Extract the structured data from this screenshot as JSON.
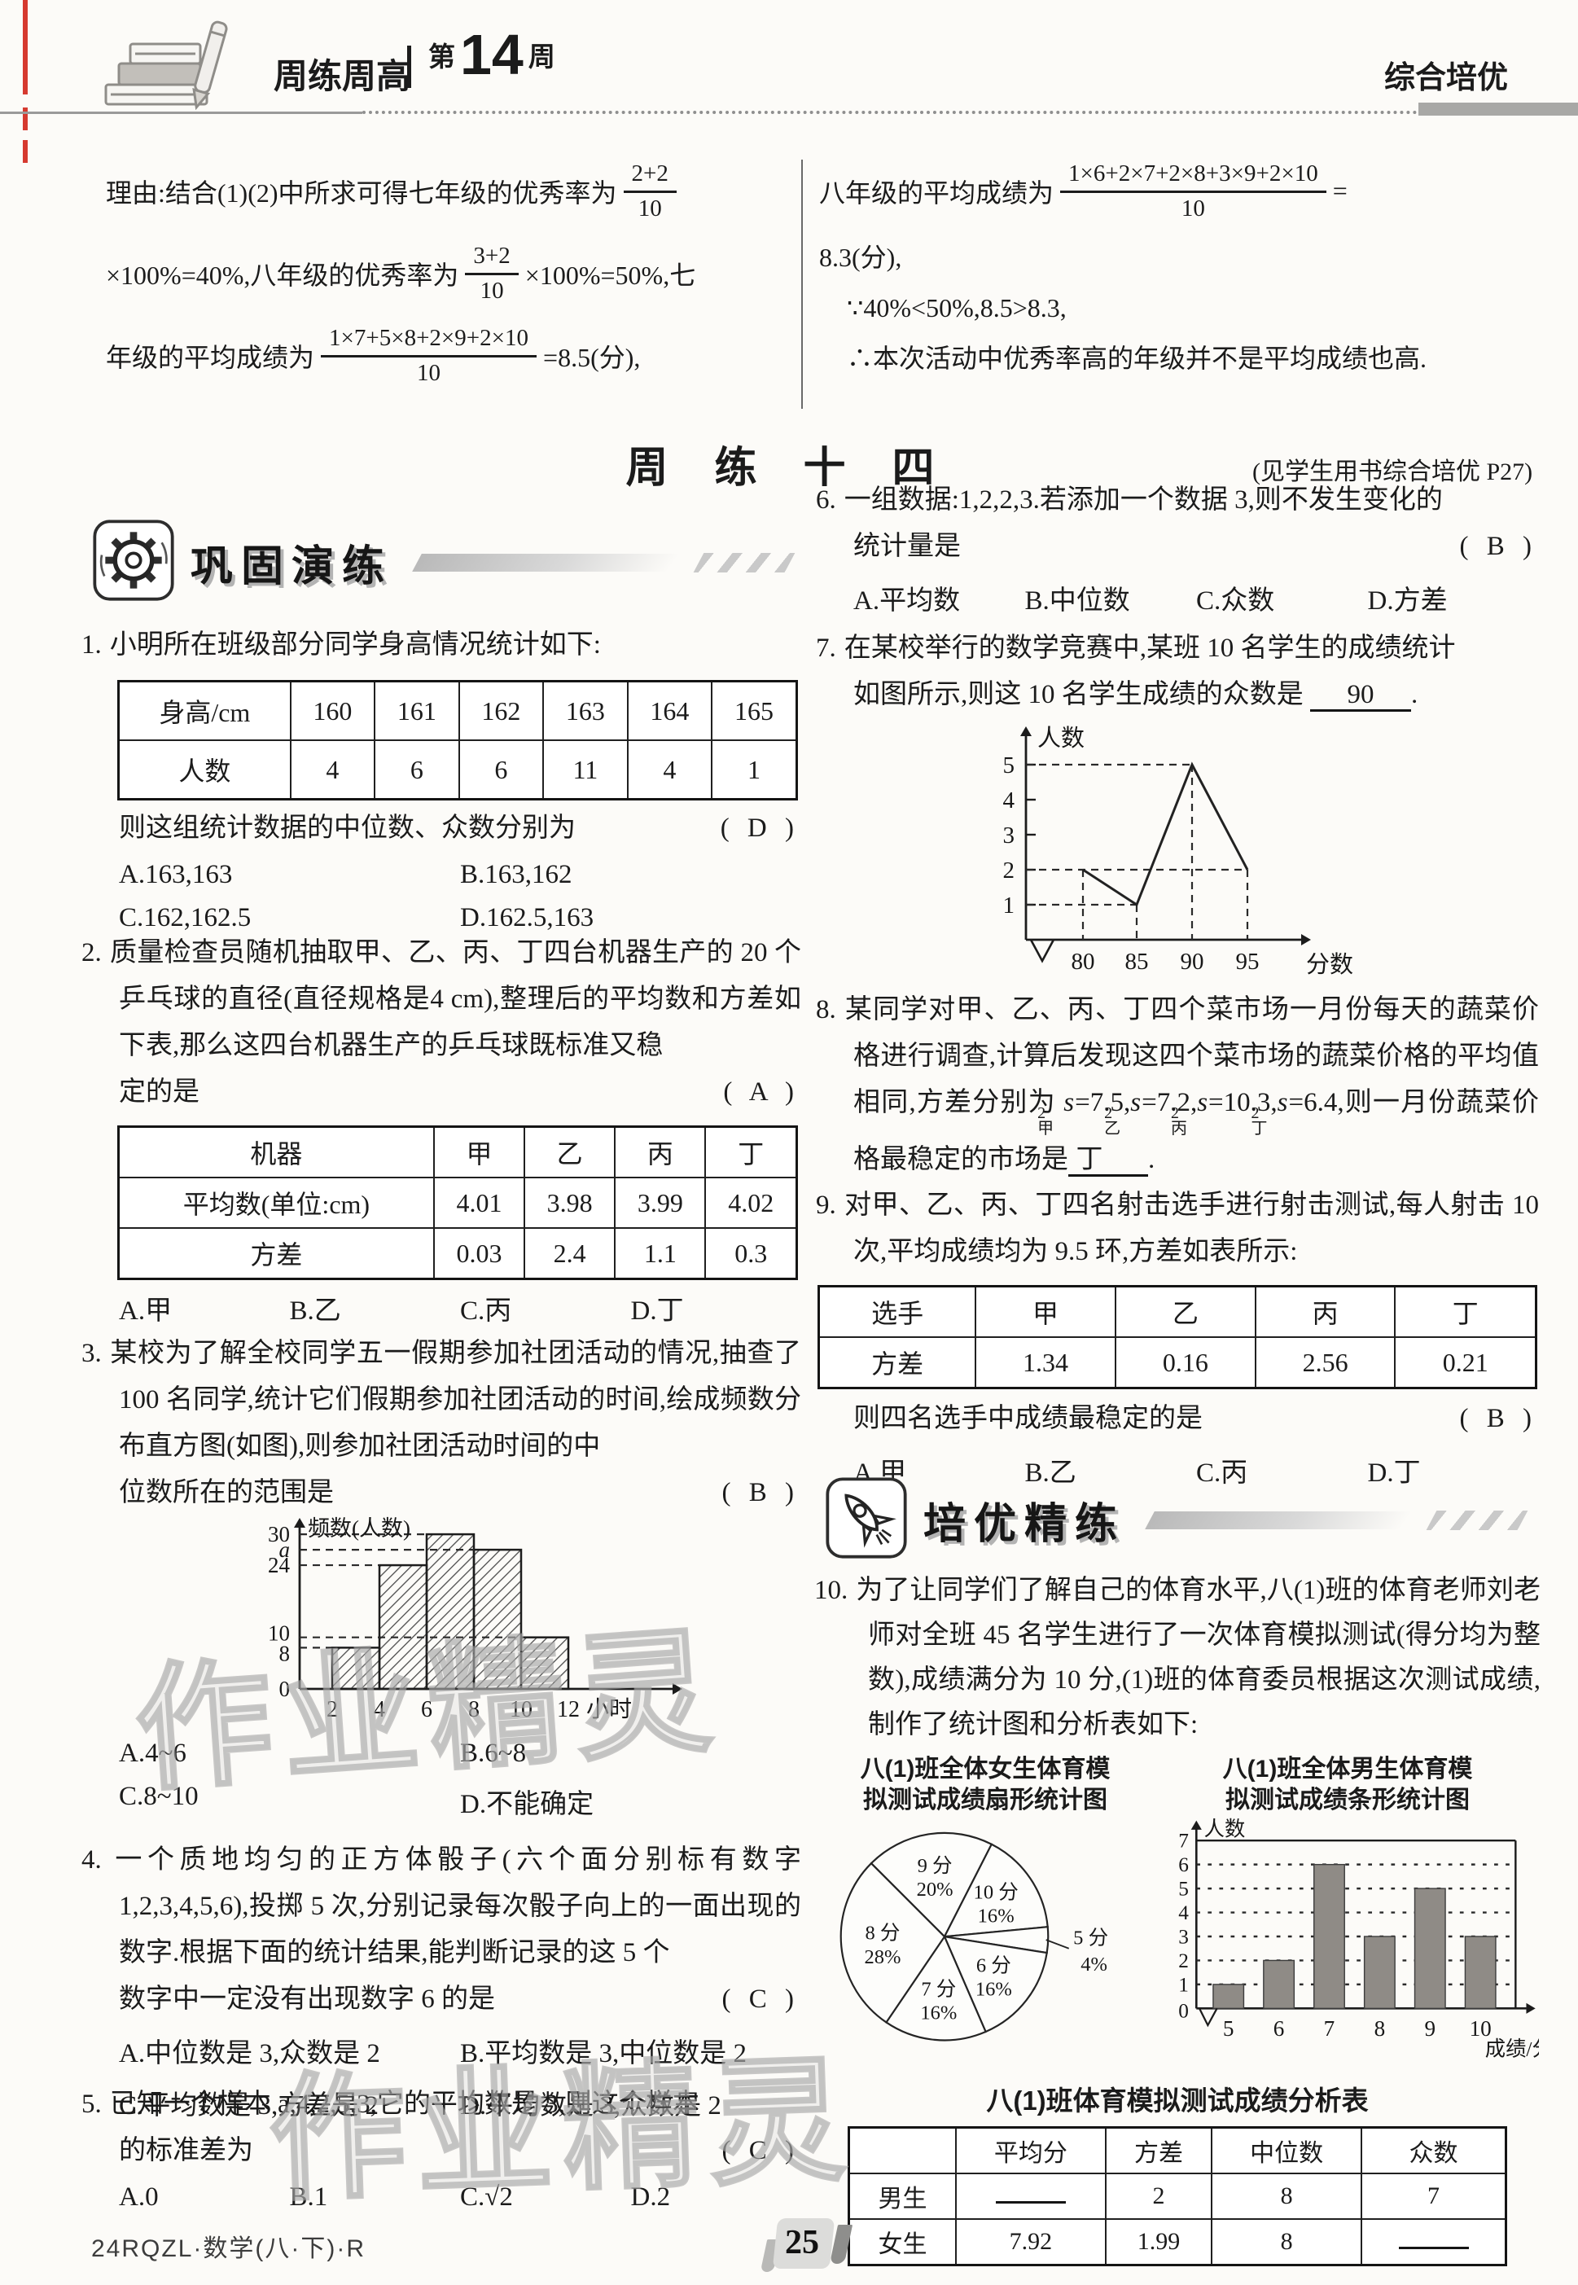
{
  "header": {
    "brand": "周练周高",
    "week_pre": "第",
    "week_num": "14",
    "week_post": "周",
    "edition": "综合培优"
  },
  "solution": {
    "left": {
      "l1a": "理由:结合(1)(2)中所求可得七年级的优秀率为",
      "f1": {
        "n": "2+2",
        "d": "10"
      },
      "l2a": "×100%=40%,八年级的优秀率为",
      "f2": {
        "n": "3+2",
        "d": "10"
      },
      "l2b": "×100%=50%,七",
      "l3a": "年级的平均成绩为",
      "f3": {
        "n": "1×7+5×8+2×9+2×10",
        "d": "10"
      },
      "l3b": "=8.5(分),"
    },
    "right": {
      "l1a": "八年级的平均成绩为",
      "f1": {
        "n": "1×6+2×7+2×8+3×9+2×10",
        "d": "10"
      },
      "l1b": "=",
      "l2": "8.3(分),",
      "l3": "∵40%<50%,8.5>8.3,",
      "l4": "∴本次活动中优秀率高的年级并不是平均成绩也高."
    }
  },
  "title": {
    "text": "周 练 十 四",
    "note": "(见学生用书综合培优 P27)"
  },
  "sections": {
    "s1": "巩固演练",
    "s2": "培优精练"
  },
  "p1": {
    "num": "1.",
    "intro": "小明所在班级部分同学身高情况统计如下:",
    "table": [
      [
        "身高/cm",
        "160",
        "161",
        "162",
        "163",
        "164",
        "165"
      ],
      [
        "人数",
        "4",
        "6",
        "6",
        "11",
        "4",
        "1"
      ]
    ],
    "q": "则这组统计数据的中位数、众数分别为",
    "ans": "( D )",
    "options": [
      "A.163,163",
      "B.163,162",
      "C.162,162.5",
      "D.162.5,163"
    ]
  },
  "p2": {
    "num": "2.",
    "body": "质量检查员随机抽取甲、乙、丙、丁四台机器生产的 20 个乒乓球的直径(直径规格是4 cm),整理后的平均数和方差如下表,那么这四台机器生产的乒乓球既标准又稳",
    "q": "定的是",
    "ans": "( A )",
    "table": [
      [
        "机器",
        "甲",
        "乙",
        "丙",
        "丁"
      ],
      [
        "平均数(单位:cm)",
        "4.01",
        "3.98",
        "3.99",
        "4.02"
      ],
      [
        "方差",
        "0.03",
        "2.4",
        "1.1",
        "0.3"
      ]
    ],
    "options": [
      "A.甲",
      "B.乙",
      "C.丙",
      "D.丁"
    ]
  },
  "p3": {
    "num": "3.",
    "body": "某校为了解全校同学五一假期参加社团活动的情况,抽查了 100 名同学,统计它们假期参加社团活动的时间,绘成频数分布直方图(如图),则参加社团活动时间的中",
    "q": "位数所在的范围是",
    "ans": "( B )",
    "options": [
      "A.4~6",
      "B.6~8",
      "C.8~10",
      "D.不能确定"
    ]
  },
  "p4": {
    "num": "4.",
    "body": "一个质地均匀的正方体骰子(六个面分别标有数字1,2,3,4,5,6),投掷 5 次,分别记录每次骰子向上的一面出现的数字.根据下面的统计结果,能判断记录的这 5 个",
    "q": "数字中一定没有出现数字 6 的是",
    "ans": "( C )",
    "options": [
      "A.中位数是 3,众数是 2",
      "B.平均数是 3,中位数是 2",
      "C.平均数是 3,方差是 2",
      "D.平均数是 3,众数是 2"
    ]
  },
  "p5": {
    "num": "5.",
    "body": "已知一个样本 a,4,2,5,3,它的平均数是 3,则这个样本",
    "q": "的标准差为",
    "ans": "( C )",
    "options": [
      "A.0",
      "B.1",
      "C.√2",
      "D.2"
    ]
  },
  "p6": {
    "num": "6.",
    "body": "一组数据:1,2,2,3.若添加一个数据 3,则不发生变化的",
    "q": "统计量是",
    "ans": "( B )",
    "options": [
      "A.平均数",
      "B.中位数",
      "C.众数",
      "D.方差"
    ]
  },
  "p7": {
    "num": "7.",
    "body1": "在某校举行的数学竞赛中,某班 10 名学生的成绩统计",
    "body2": "如图所示,则这 10 名学生成绩的众数是",
    "blank": "90",
    "tail": "."
  },
  "p8": {
    "num": "8.",
    "t1": "某同学对甲、乙、丙、丁四个菜市场一月份每天的蔬菜价格进行调查,计算后发现这四个菜市场的蔬菜价格的平均值相同,方差分别为 ",
    "vars": [
      {
        "b": "s",
        "p": "2",
        "s": "甲",
        "t": "=7.5,"
      },
      {
        "b": "s",
        "p": "2",
        "s": "乙",
        "t": "=7.2,"
      },
      {
        "b": "s",
        "p": "2",
        "s": "丙",
        "t": "=10.3,"
      },
      {
        "b": "s",
        "p": "2",
        "s": "丁",
        "t": "=6.4,"
      }
    ],
    "t2": "则一月份蔬菜价格最稳定的市场是",
    "blank": "丁",
    "tail": "."
  },
  "p9": {
    "num": "9.",
    "body": "对甲、乙、丙、丁四名射击选手进行射击测试,每人射击 10 次,平均成绩均为 9.5 环,方差如表所示:",
    "table": [
      [
        "选手",
        "甲",
        "乙",
        "丙",
        "丁"
      ],
      [
        "方差",
        "1.34",
        "0.16",
        "2.56",
        "0.21"
      ]
    ],
    "q": "则四名选手中成绩最稳定的是",
    "ans": "( B )",
    "options": [
      "A.甲",
      "B.乙",
      "C.丙",
      "D.丁"
    ]
  },
  "p10": {
    "num": "10.",
    "body": "为了让同学们了解自己的体育水平,八(1)班的体育老师刘老师对全班 45 名学生进行了一次体育模拟测试(得分均为整数),成绩满分为 10 分,(1)班的体育委员根据这次测试成绩,制作了统计图和分析表如下:",
    "pie_title1": "八(1)班全体女生体育模",
    "pie_title2": "拟测试成绩扇形统计图",
    "bar_title1": "八(1)班全体男生体育模",
    "bar_title2": "拟测试成绩条形统计图",
    "table_title": "八(1)班体育模拟测试成绩分析表",
    "table": [
      [
        "",
        "平均分",
        "方差",
        "中位数",
        "众数"
      ],
      [
        "男生",
        "__",
        "2",
        "8",
        "7"
      ],
      [
        "女生",
        "7.92",
        "1.99",
        "8",
        "__"
      ]
    ]
  },
  "watermark": {
    "text": "作业精灵"
  },
  "footer": {
    "left": "24RQZL·数学(八·下)·R",
    "page": "25"
  },
  "chart_data": [
    {
      "id": "hist_p3",
      "type": "bar",
      "subtype": "frequency-histogram-hatched",
      "ylabel": "频数(人数)",
      "xlabel": "小时",
      "x_ticks": [
        "2",
        "4",
        "6",
        "8",
        "10",
        "12"
      ],
      "y_ticks": [
        "0",
        "8",
        "10",
        "24",
        "a",
        "30"
      ],
      "bins": [
        "2-4",
        "4-6",
        "6-8",
        "8-10",
        "10-12"
      ],
      "values": [
        8,
        24,
        30,
        "a",
        10
      ],
      "a_value_est": 27,
      "ylim": [
        0,
        30
      ],
      "grid": "dashed-guides"
    },
    {
      "id": "line_p7",
      "type": "line",
      "ylabel": "人数",
      "xlabel": "分数",
      "x": [
        80,
        85,
        90,
        95
      ],
      "y": [
        2,
        1,
        5,
        2
      ],
      "y_ticks": [
        1,
        2,
        3,
        4,
        5
      ],
      "ylim": [
        0,
        5.5
      ],
      "grid": "dashed-guides",
      "axis_break": true
    },
    {
      "id": "pie_p10",
      "type": "pie",
      "title": "八(1)班全体女生体育模拟测试成绩扇形统计图",
      "slices": [
        {
          "label": "9 分",
          "pct": 20
        },
        {
          "label": "10 分",
          "pct": 16
        },
        {
          "label": "5 分",
          "pct": 4
        },
        {
          "label": "6 分",
          "pct": 16
        },
        {
          "label": "7 分",
          "pct": 16
        },
        {
          "label": "8 分",
          "pct": 28
        }
      ],
      "start_angle_deg": 135,
      "direction": "clockwise",
      "outside_label": "5 分"
    },
    {
      "id": "bar_p10",
      "type": "bar",
      "title": "八(1)班全体男生体育模拟测试成绩条形统计图",
      "ylabel": "人数",
      "xlabel": "成绩/分",
      "categories": [
        "5",
        "6",
        "7",
        "8",
        "9",
        "10"
      ],
      "values": [
        1,
        2,
        6,
        3,
        5,
        3
      ],
      "ylim": [
        0,
        7
      ],
      "grid": "dashed",
      "axis_break": true
    }
  ]
}
